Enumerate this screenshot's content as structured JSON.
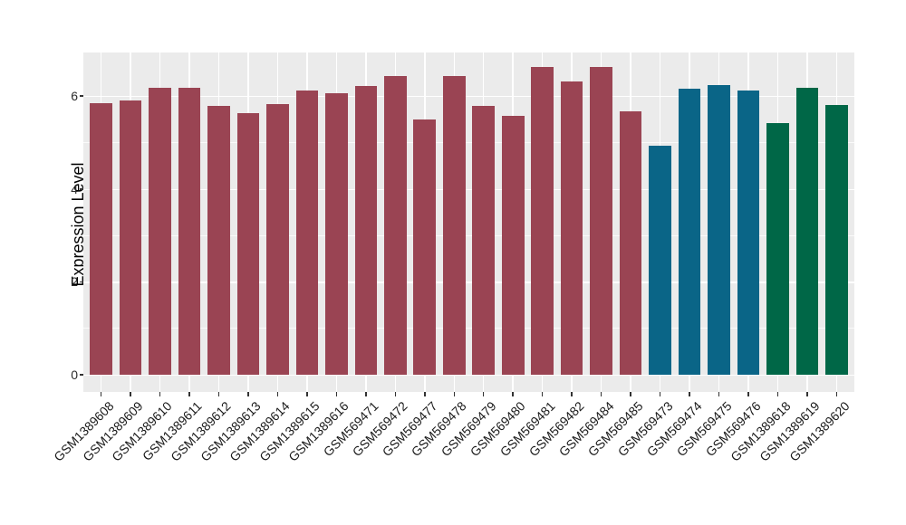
{
  "chart_data": {
    "type": "bar",
    "title": "",
    "xlabel": "",
    "ylabel": "Expression Level",
    "ylim": [
      -0.37,
      6.95
    ],
    "y_major_ticks": [
      0,
      2,
      4,
      6
    ],
    "y_minor_gridlines": [
      1,
      3,
      5
    ],
    "grid": true,
    "legend_position": "none",
    "panel_background_color": "#EBEBEB",
    "gridline_color": "#FFFFFF",
    "tick_color": "#333333",
    "group_colors": [
      "#9A4453",
      "#0A6587",
      "#006747"
    ],
    "bars": [
      {
        "label": "GSM1389608",
        "value": 5.85,
        "color": "#9A4453"
      },
      {
        "label": "GSM1389609",
        "value": 5.91,
        "color": "#9A4453"
      },
      {
        "label": "GSM1389610",
        "value": 6.17,
        "color": "#9A4453"
      },
      {
        "label": "GSM1389611",
        "value": 6.17,
        "color": "#9A4453"
      },
      {
        "label": "GSM1389612",
        "value": 5.79,
        "color": "#9A4453"
      },
      {
        "label": "GSM1389613",
        "value": 5.64,
        "color": "#9A4453"
      },
      {
        "label": "GSM1389614",
        "value": 5.83,
        "color": "#9A4453"
      },
      {
        "label": "GSM1389615",
        "value": 6.13,
        "color": "#9A4453"
      },
      {
        "label": "GSM1389616",
        "value": 6.06,
        "color": "#9A4453"
      },
      {
        "label": "GSM569471",
        "value": 6.22,
        "color": "#9A4453"
      },
      {
        "label": "GSM569472",
        "value": 6.43,
        "color": "#9A4453"
      },
      {
        "label": "GSM569477",
        "value": 5.49,
        "color": "#9A4453"
      },
      {
        "label": "GSM569478",
        "value": 6.43,
        "color": "#9A4453"
      },
      {
        "label": "GSM569479",
        "value": 5.78,
        "color": "#9A4453"
      },
      {
        "label": "GSM569480",
        "value": 5.58,
        "color": "#9A4453"
      },
      {
        "label": "GSM569481",
        "value": 6.63,
        "color": "#9A4453"
      },
      {
        "label": "GSM569482",
        "value": 6.32,
        "color": "#9A4453"
      },
      {
        "label": "GSM569484",
        "value": 6.63,
        "color": "#9A4453"
      },
      {
        "label": "GSM569485",
        "value": 5.68,
        "color": "#9A4453"
      },
      {
        "label": "GSM569473",
        "value": 4.94,
        "color": "#0A6587"
      },
      {
        "label": "GSM569474",
        "value": 6.16,
        "color": "#0A6587"
      },
      {
        "label": "GSM569475",
        "value": 6.24,
        "color": "#0A6587"
      },
      {
        "label": "GSM569476",
        "value": 6.13,
        "color": "#0A6587"
      },
      {
        "label": "GSM1389618",
        "value": 5.42,
        "color": "#006747"
      },
      {
        "label": "GSM1389619",
        "value": 6.17,
        "color": "#006747"
      },
      {
        "label": "GSM1389620",
        "value": 5.81,
        "color": "#006747"
      }
    ]
  }
}
